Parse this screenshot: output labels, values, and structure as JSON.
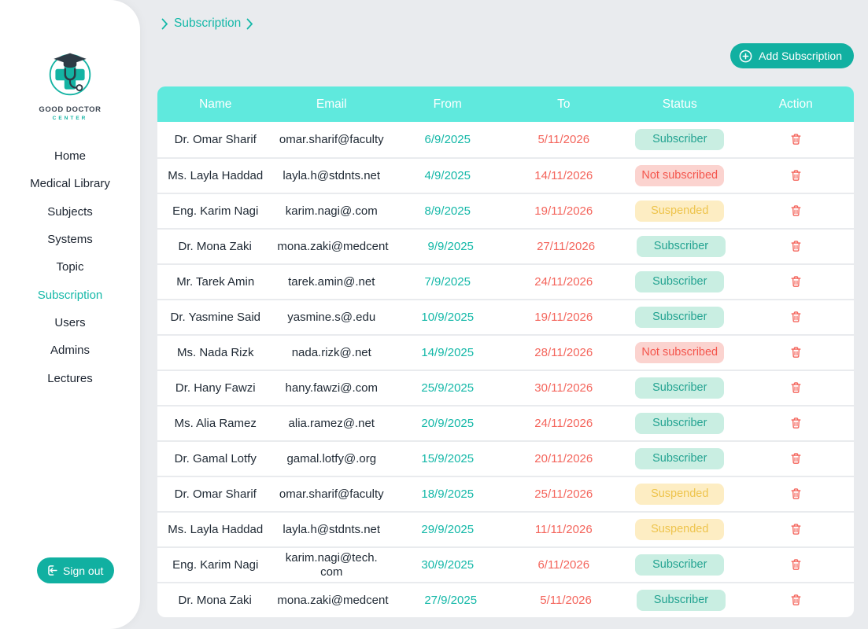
{
  "brand": {
    "line1": "GOOD DOCTOR",
    "line2": "CENTER"
  },
  "sidebar": {
    "items": [
      {
        "label": "Home",
        "active": false
      },
      {
        "label": "Medical Library",
        "active": false
      },
      {
        "label": "Subjects",
        "active": false
      },
      {
        "label": "Systems",
        "active": false
      },
      {
        "label": "Topic",
        "active": false
      },
      {
        "label": "Subscription",
        "active": true
      },
      {
        "label": "Users",
        "active": false
      },
      {
        "label": "Admins",
        "active": false
      },
      {
        "label": "Lectures",
        "active": false
      }
    ],
    "signout_label": "Sign out"
  },
  "header": {
    "breadcrumb": "Subscription",
    "add_button_label": "Add Subscription"
  },
  "table": {
    "columns": [
      "Name",
      "Email",
      "From",
      "To",
      "Status",
      "Action"
    ],
    "rows": [
      {
        "name": "Dr. Omar Sharif",
        "email": "omar.sharif@faculty",
        "from": "6/9/2025",
        "to": "5/11/2026",
        "status": "Subscriber"
      },
      {
        "name": "Ms. Layla Haddad",
        "email": "layla.h@stdnts.net",
        "from": "4/9/2025",
        "to": "14/11/2026",
        "status": "Not subscribed"
      },
      {
        "name": "Eng. Karim Nagi",
        "email": "karim.nagi@.com",
        "from": "8/9/2025",
        "to": "19/11/2026",
        "status": "Suspended"
      },
      {
        "name": "Dr. Mona Zaki",
        "email": "mona.zaki@medcent",
        "from": "9/9/2025",
        "to": "27/11/2026",
        "status": "Subscriber"
      },
      {
        "name": "Mr. Tarek Amin",
        "email": "tarek.amin@.net",
        "from": "7/9/2025",
        "to": "24/11/2026",
        "status": "Subscriber"
      },
      {
        "name": "Dr. Yasmine Said",
        "email": "yasmine.s@.edu",
        "from": "10/9/2025",
        "to": "19/11/2026",
        "status": "Subscriber"
      },
      {
        "name": "Ms. Nada Rizk",
        "email": "nada.rizk@.net",
        "from": "14/9/2025",
        "to": "28/11/2026",
        "status": "Not subscribed"
      },
      {
        "name": "Dr. Hany Fawzi",
        "email": "hany.fawzi@.com",
        "from": "25/9/2025",
        "to": "30/11/2026",
        "status": "Subscriber"
      },
      {
        "name": "Ms. Alia Ramez",
        "email": "alia.ramez@.net",
        "from": "20/9/2025",
        "to": "24/11/2026",
        "status": "Subscriber"
      },
      {
        "name": "Dr. Gamal Lotfy",
        "email": "gamal.lotfy@.org",
        "from": "15/9/2025",
        "to": "20/11/2026",
        "status": "Subscriber"
      },
      {
        "name": "Dr. Omar Sharif",
        "email": "omar.sharif@faculty",
        "from": "18/9/2025",
        "to": "25/11/2026",
        "status": "Suspended"
      },
      {
        "name": "Ms. Layla Haddad",
        "email": "layla.h@stdnts.net",
        "from": "29/9/2025",
        "to": "11/11/2026",
        "status": "Suspended"
      },
      {
        "name": "Eng. Karim Nagi",
        "email": "karim.nagi@tech. com",
        "from": "30/9/2025",
        "to": "6/11/2026",
        "status": "Subscriber"
      },
      {
        "name": "Dr. Mona Zaki",
        "email": "mona.zaki@medcent",
        "from": "27/9/2025",
        "to": "5/11/2026",
        "status": "Subscriber"
      }
    ],
    "status_styles": {
      "Subscriber": {
        "bg": "#c9eee2",
        "fg": "#23a391"
      },
      "Not subscribed": {
        "bg": "#fbd3cf",
        "fg": "#f4564d"
      },
      "Suspended": {
        "bg": "#fdedc3",
        "fg": "#eec44d"
      }
    }
  },
  "colors": {
    "primary": "#11b0a1",
    "table_header_bg": "#5fe9dd",
    "date_from": "#14b8a8",
    "date_to": "#f4655c",
    "delete_icon": "#f4655c",
    "page_bg": "#e9ebee"
  }
}
